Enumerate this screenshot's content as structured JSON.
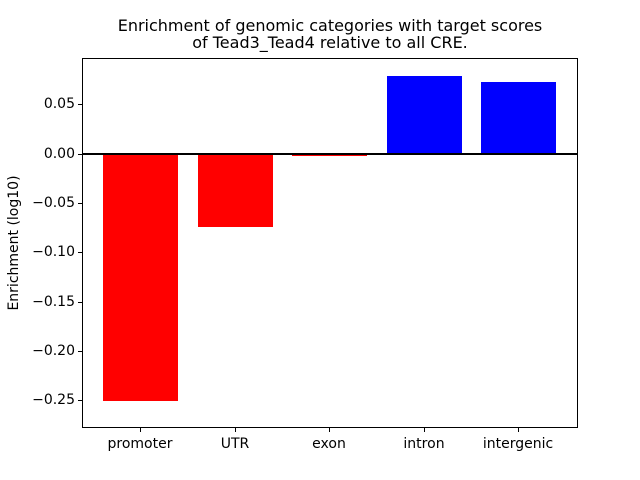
{
  "chart_data": {
    "type": "bar",
    "title": "Enrichment of genomic categories with target scores\nof Tead3_Tead4 relative to all CRE.",
    "ylabel": "Enrichment (log10)",
    "categories": [
      "promoter",
      "UTR",
      "exon",
      "intron",
      "intergenic"
    ],
    "values": [
      -0.251,
      -0.074,
      -0.002,
      0.079,
      0.073
    ],
    "bar_colors": [
      "#ff0000",
      "#ff0000",
      "#ff0000",
      "#0000ff",
      "#0000ff"
    ],
    "negative_color": "#ff0000",
    "positive_color": "#0000ff",
    "ylim": [
      -0.277,
      0.096
    ],
    "yticks": [
      0.05,
      0.0,
      -0.05,
      -0.1,
      -0.15,
      -0.2,
      -0.25
    ],
    "ytick_labels": [
      "0.05",
      "0.00",
      "−0.05",
      "−0.10",
      "−0.15",
      "−0.20",
      "−0.25"
    ],
    "zero_line": true,
    "grid": false,
    "legend": false,
    "axis_color": "#000000",
    "background": "#ffffff"
  }
}
